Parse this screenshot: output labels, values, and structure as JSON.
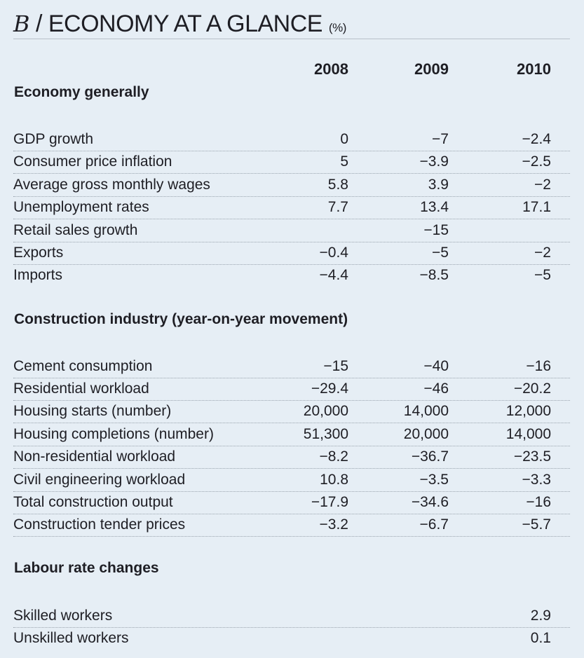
{
  "title": {
    "letter": "B",
    "slash": "/",
    "text": "ECONOMY AT A GLANCE",
    "unit": "(%)"
  },
  "columns": [
    "2008",
    "2009",
    "2010"
  ],
  "sections": [
    {
      "title": "Economy generally",
      "rows": [
        {
          "label": "GDP growth",
          "values": [
            "0",
            "-7",
            "-2.4"
          ]
        },
        {
          "label": "Consumer price inflation",
          "values": [
            "5",
            "-3.9",
            "-2.5"
          ]
        },
        {
          "label": "Average gross monthly wages",
          "values": [
            "5.8",
            "3.9",
            "-2"
          ]
        },
        {
          "label": "Unemployment rates",
          "values": [
            "7.7",
            "13.4",
            "17.1"
          ]
        },
        {
          "label": "Retail sales growth",
          "values": [
            "",
            "-15",
            ""
          ]
        },
        {
          "label": "Exports",
          "values": [
            "-0.4",
            "-5",
            "-2"
          ]
        },
        {
          "label": "Imports",
          "values": [
            "-4.4",
            "-8.5",
            "-5"
          ]
        }
      ]
    },
    {
      "title": "Construction industry (year-on-year movement)",
      "rows": [
        {
          "label": "Cement consumption",
          "values": [
            "-15",
            "-40",
            "-16"
          ]
        },
        {
          "label": "Residential workload",
          "values": [
            "-29.4",
            "-46",
            "-20.2"
          ]
        },
        {
          "label": "Housing starts (number)",
          "values": [
            "20,000",
            "14,000",
            "12,000"
          ]
        },
        {
          "label": "Housing completions (number)",
          "values": [
            "51,300",
            "20,000",
            "14,000"
          ]
        },
        {
          "label": "Non-residential workload",
          "values": [
            "-8.2",
            "-36.7",
            "-23.5"
          ]
        },
        {
          "label": "Civil engineering workload",
          "values": [
            "10.8",
            "-3.5",
            "-3.3"
          ]
        },
        {
          "label": "Total construction output",
          "values": [
            "-17.9",
            "-34.6",
            "-16"
          ]
        },
        {
          "label": "Construction tender prices",
          "values": [
            "-3.2",
            "-6.7",
            "-5.7"
          ]
        }
      ]
    },
    {
      "title": "Labour rate changes",
      "rows": [
        {
          "label": "Skilled workers",
          "values": [
            "",
            "",
            "2.9"
          ]
        },
        {
          "label": "Unskilled workers",
          "values": [
            "",
            "",
            "0.1"
          ]
        }
      ]
    }
  ]
}
